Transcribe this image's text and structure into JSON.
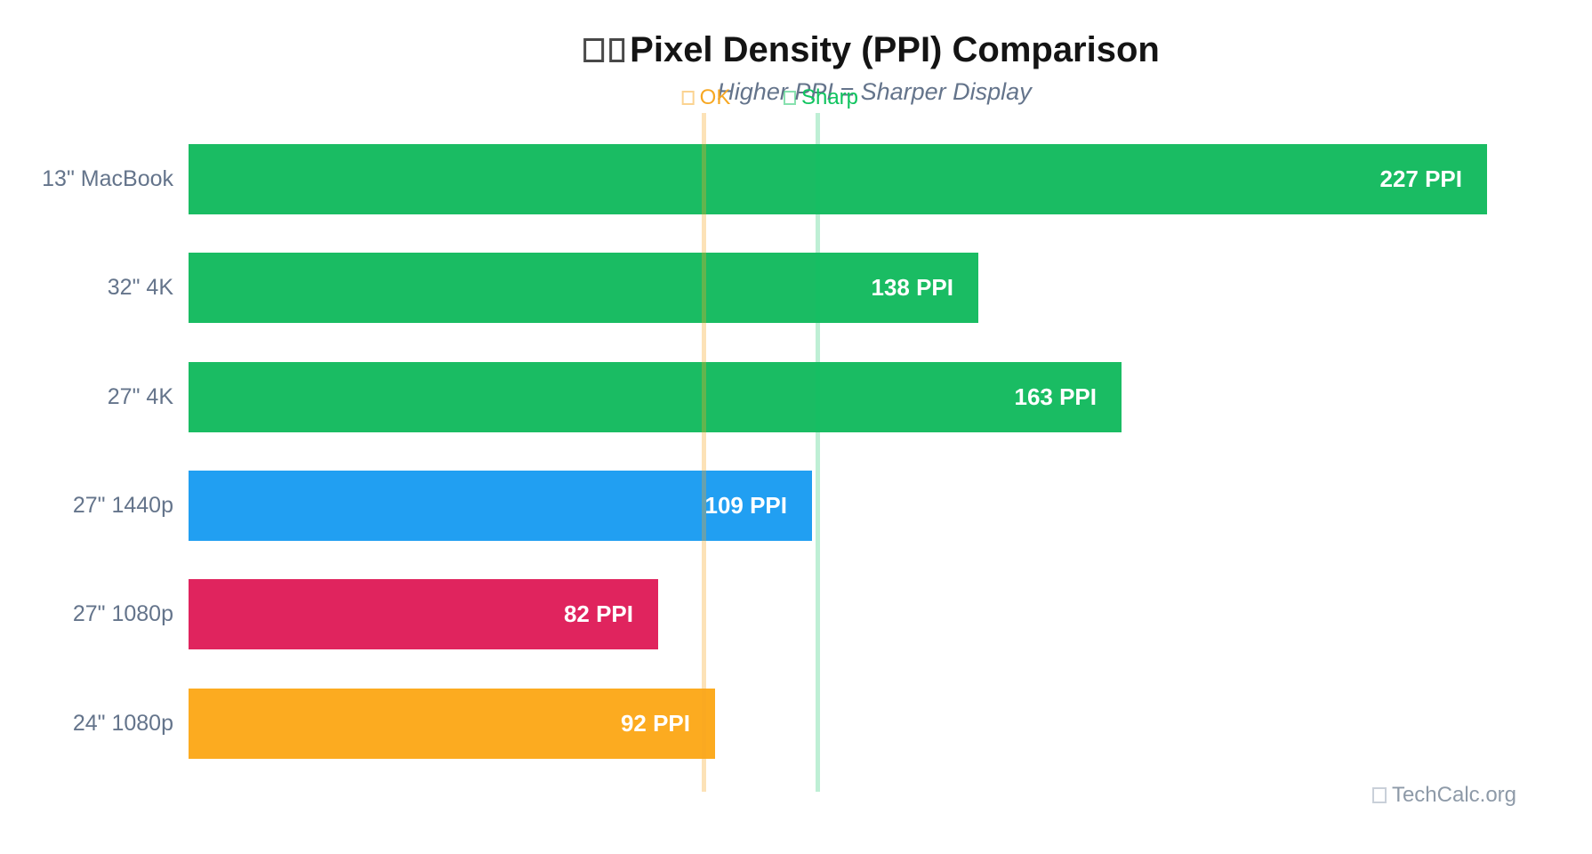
{
  "chart_data": {
    "type": "bar",
    "orientation": "horizontal",
    "title": "Pixel Density (PPI) Comparison",
    "title_prefix_glyphs": "missing-emoji-tofu x2",
    "subtitle": "Higher PPI = Sharper Display",
    "categories": [
      "13\" MacBook",
      "32\" 4K",
      "27\" 4K",
      "27\" 1440p",
      "27\" 1080p",
      "24\" 1080p"
    ],
    "values": [
      227,
      138,
      163,
      109,
      82,
      92
    ],
    "value_labels": [
      "227 PPI",
      "138 PPI",
      "163 PPI",
      "109 PPI",
      "82 PPI",
      "92 PPI"
    ],
    "bar_colors": [
      "#1abc63",
      "#1abc63",
      "#1abc63",
      "#219ff2",
      "#e0245e",
      "#fcab20"
    ],
    "xlim": [
      0,
      240
    ],
    "grid": false,
    "legend_position": "none",
    "reference_lines": [
      {
        "label": "OK",
        "value": 90,
        "label_color": "#f7a823",
        "line_rgba": "rgba(247,166,35,0.33)"
      },
      {
        "label": "Sharp",
        "value": 110,
        "label_color": "#10c45f",
        "line_rgba": "rgba(16,196,99,0.27)"
      }
    ]
  },
  "watermark": {
    "text": "TechCalc.org"
  }
}
